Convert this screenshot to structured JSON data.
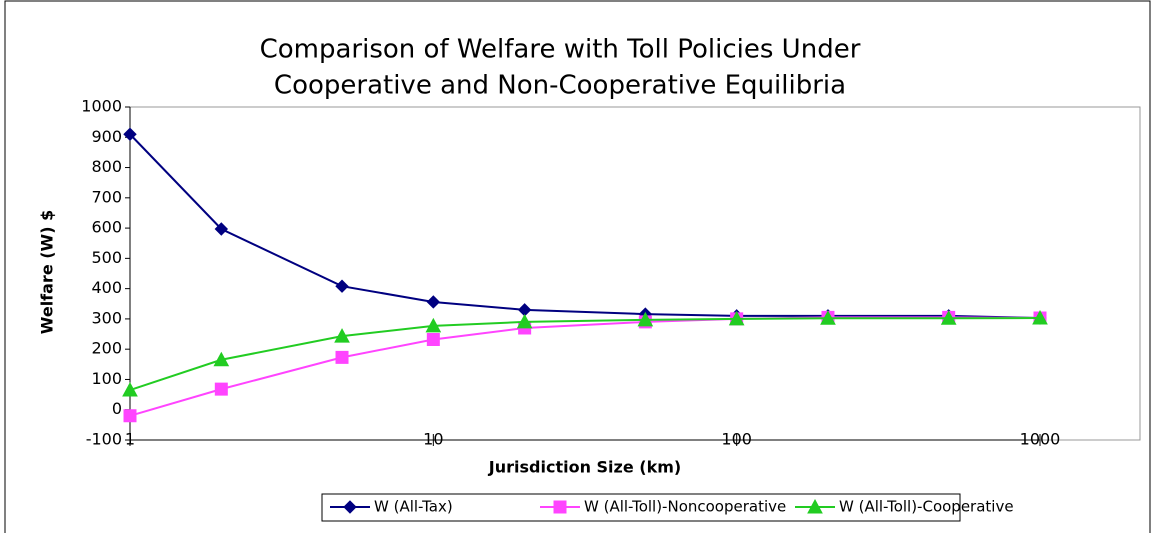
{
  "chart_data": {
    "type": "line",
    "title": [
      "Comparison of Welfare with Toll Policies Under",
      "Cooperative and Non-Cooperative Equilibria"
    ],
    "x_label": "Jurisdiction Size (km)",
    "y_label": "Welfare (W) $",
    "x": [
      1,
      2,
      5,
      10,
      20,
      50,
      100,
      200,
      500,
      1000
    ],
    "x_log": true,
    "xlim": [
      1,
      1000
    ],
    "xticks": [
      1,
      10,
      100,
      1000
    ],
    "ylim": [
      -100,
      1000
    ],
    "yticks": [
      -100,
      0,
      100,
      200,
      300,
      400,
      500,
      600,
      700,
      800,
      900,
      1000
    ],
    "legend": "bottom",
    "series": [
      {
        "name": "W (All-Tax)",
        "color": "#000080",
        "marker": "diamond",
        "values": [
          910,
          597,
          408,
          356,
          330,
          316,
          310,
          310,
          310,
          303
        ]
      },
      {
        "name": "W (All-Toll)-Noncooperative",
        "color": "#ff44ff",
        "marker": "square",
        "values": [
          -20,
          68,
          173,
          232,
          270,
          290,
          300,
          305,
          305,
          303
        ]
      },
      {
        "name": "W (All-Toll)-Cooperative",
        "color": "#22cc22",
        "marker": "triangle",
        "values": [
          65,
          165,
          243,
          277,
          290,
          297,
          300,
          302,
          302,
          303
        ]
      }
    ]
  }
}
